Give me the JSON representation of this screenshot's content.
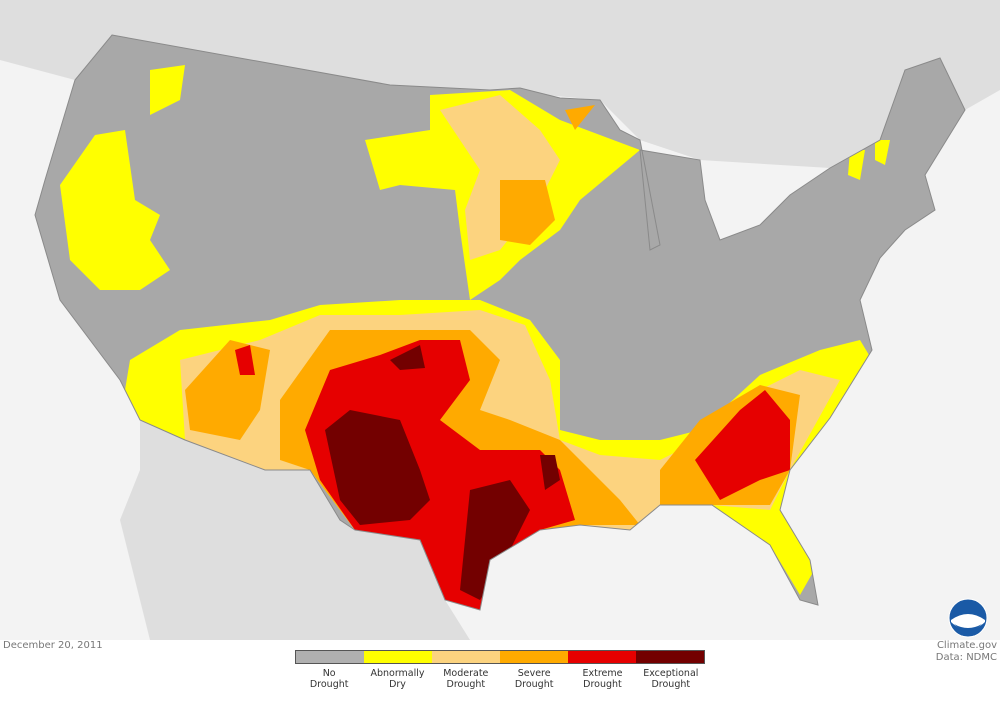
{
  "date": "December 20, 2011",
  "credit": "Climate.gov",
  "data_source": "Data: NDMC",
  "logo_text": "NOAA",
  "legend": [
    {
      "line1": "No",
      "line2": "Drought",
      "color": "#b0b0b0"
    },
    {
      "line1": "Abnormally",
      "line2": "Dry",
      "color": "#ffff00"
    },
    {
      "line1": "Moderate",
      "line2": "Drought",
      "color": "#fcd37f"
    },
    {
      "line1": "Severe",
      "line2": "Drought",
      "color": "#ffaa00"
    },
    {
      "line1": "Extreme",
      "line2": "Drought",
      "color": "#e60000"
    },
    {
      "line1": "Exceptional",
      "line2": "Drought",
      "color": "#730000"
    }
  ]
}
